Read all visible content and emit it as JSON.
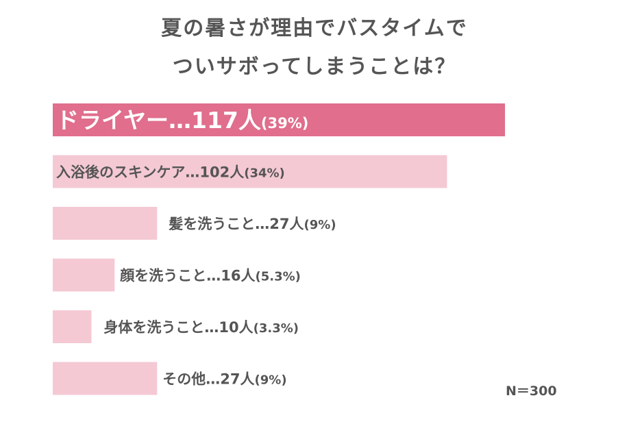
{
  "title": {
    "line1": "夏の暑さが理由でバスタイムで",
    "line2": "ついサボってしまうことは？"
  },
  "chart_data": {
    "type": "bar",
    "orientation": "horizontal",
    "categories": [
      "ドライヤー",
      "入浴後のスキンケア",
      "髪を洗うこと",
      "顔を洗うこと",
      "身体を洗うこと",
      "その他"
    ],
    "values": [
      117,
      102,
      27,
      16,
      10,
      27
    ],
    "percent_labels": [
      "39%",
      "34%",
      "9%",
      "5.3%",
      "3.3%",
      "9%"
    ],
    "unit": "人",
    "total": 300,
    "data_labels": [
      "ドライヤー…117人",
      "入浴後のスキンケア…102人",
      "髪を洗うこと…27人",
      "顔を洗うこと…16人",
      "身体を洗うこと…10人",
      "その他…27人"
    ],
    "highlight_color": "#e06e8c",
    "bar_color": "#f4c9d4"
  },
  "footnote": "N＝300"
}
